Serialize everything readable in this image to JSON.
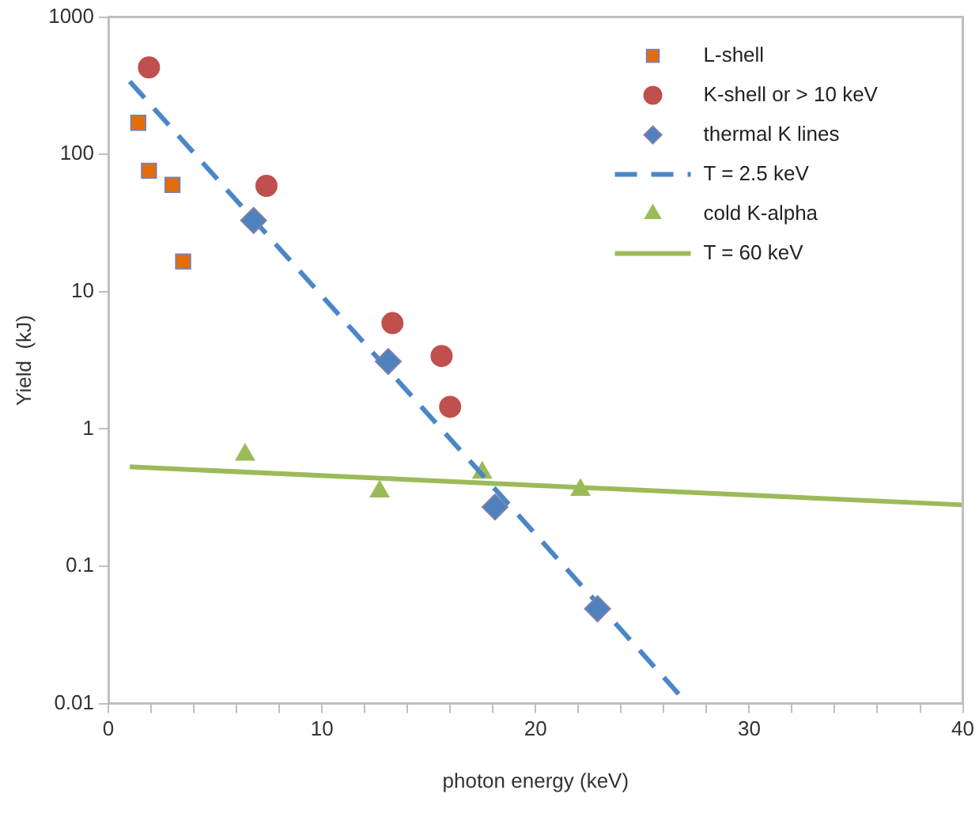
{
  "chart_data": {
    "type": "scatter",
    "xlabel": "photon energy (keV)",
    "ylabel": "Yield  (kJ)",
    "log": "y",
    "grid": false,
    "legend": "top right",
    "xlim": [
      0,
      40
    ],
    "xticks": [
      0,
      {
        "value": 2,
        "label": null
      },
      {
        "value": 4,
        "label": null
      },
      {
        "value": 6,
        "label": null
      },
      {
        "value": 8,
        "label": null
      },
      10,
      {
        "value": 12,
        "label": null
      },
      {
        "value": 14,
        "label": null
      },
      {
        "value": 16,
        "label": null
      },
      {
        "value": 18,
        "label": null
      },
      20,
      {
        "value": 22,
        "label": null
      },
      {
        "value": 24,
        "label": null
      },
      {
        "value": 26,
        "label": null
      },
      {
        "value": 28,
        "label": null
      },
      30,
      {
        "value": 32,
        "label": null
      },
      {
        "value": 34,
        "label": null
      },
      {
        "value": 36,
        "label": null
      },
      {
        "value": 38,
        "label": null
      },
      40
    ],
    "ylim": [
      0.01,
      1000
    ],
    "yticks": [
      0.01,
      0.1,
      1,
      10,
      100,
      1000
    ],
    "series": [
      {
        "name": "L-shell",
        "marker": "square",
        "color": "#e46c0a",
        "x": [
          1.4,
          1.9,
          3.0,
          3.5
        ],
        "values": [
          170,
          76,
          60,
          16.6
        ]
      },
      {
        "name": "K-shell or > 10 keV",
        "marker": "circle",
        "color": "#c0504d",
        "x": [
          1.9,
          7.4,
          13.3,
          15.6,
          16.0
        ],
        "values": [
          430,
          59,
          5.9,
          3.4,
          1.45
        ]
      },
      {
        "name": "thermal K lines",
        "marker": "diamond",
        "color": "#4f81bd",
        "x": [
          6.8,
          13.1,
          18.1,
          22.9
        ],
        "values": [
          33,
          3.1,
          0.27,
          0.049
        ]
      },
      {
        "name": "T = 2.5 keV",
        "type": "line",
        "line_style": "dashed",
        "color": "#4a86c8",
        "x": [
          1,
          27.1
        ],
        "values": [
          340,
          0.01
        ]
      },
      {
        "name": "cold K-alpha",
        "marker": "triangle",
        "color": "#9bbb59",
        "x": [
          6.4,
          12.7,
          17.5,
          22.1
        ],
        "values": [
          0.65,
          0.35,
          0.48,
          0.36
        ]
      },
      {
        "name": "T = 60 keV",
        "type": "line",
        "line_style": "solid",
        "color": "#9bbb59",
        "x": [
          1,
          40
        ],
        "values": [
          0.53,
          0.28
        ]
      }
    ]
  }
}
